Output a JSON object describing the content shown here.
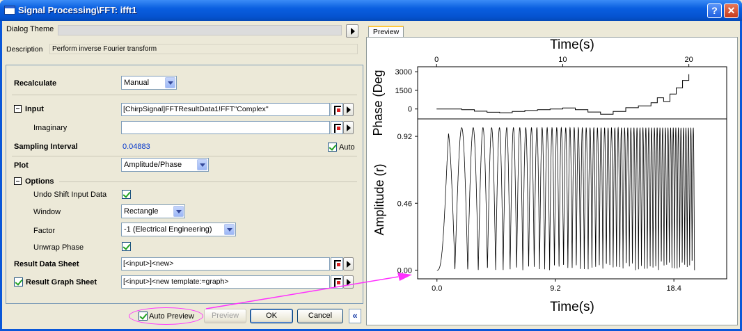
{
  "window": {
    "title": "Signal Processing\\FFT: ifft1"
  },
  "header": {
    "dialog_theme_label": "Dialog Theme",
    "dialog_theme_value": "",
    "description_label": "Description",
    "description_value": "Perform inverse Fourier transform"
  },
  "settings": {
    "recalculate": {
      "label": "Recalculate",
      "value": "Manual"
    },
    "input": {
      "label": "Input",
      "value": "[ChirpSignal]FFTResultData1!FFT''Complex''"
    },
    "imaginary": {
      "label": "Imaginary",
      "value": ""
    },
    "sampling_interval": {
      "label": "Sampling Interval",
      "value": "0.04883",
      "auto_label": "Auto",
      "auto_checked": true
    },
    "plot": {
      "label": "Plot",
      "value": "Amplitude/Phase"
    },
    "options": {
      "label": "Options",
      "undo_shift": {
        "label": "Undo Shift Input Data",
        "checked": true
      },
      "window": {
        "label": "Window",
        "value": "Rectangle"
      },
      "factor": {
        "label": "Factor",
        "value": "-1 (Electrical Engineering)"
      },
      "unwrap_phase": {
        "label": "Unwrap Phase",
        "checked": true
      }
    },
    "result_data_sheet": {
      "label": "Result Data Sheet",
      "value": "[<input>]<new>"
    },
    "result_graph_sheet": {
      "label": "Result Graph Sheet",
      "value": "[<input>]<new template:=graph>",
      "checked": true
    }
  },
  "buttons": {
    "auto_preview": "Auto Preview",
    "auto_preview_checked": true,
    "preview": "Preview",
    "ok": "OK",
    "cancel": "Cancel",
    "collapse": "«"
  },
  "preview_tab": {
    "label": "Preview"
  },
  "chart_data": [
    {
      "type": "line",
      "title": "",
      "xlabel": "Time(s)",
      "ylabel": "Phase (Deg",
      "x_axis_position": "top",
      "x_ticks": [
        "0",
        "10",
        "20"
      ],
      "y_ticks": [
        "3000",
        "1500",
        "0"
      ],
      "xlim": [
        -1.5,
        23
      ],
      "ylim": [
        -800,
        3400
      ],
      "series": [
        {
          "x": [
            0,
            1,
            2,
            3,
            4,
            5,
            6,
            7,
            8,
            9,
            10,
            11,
            12,
            13,
            14,
            15,
            16,
            17,
            17.5,
            18,
            18.5,
            19,
            19.5,
            20
          ],
          "values": [
            0,
            0,
            -60,
            -180,
            -260,
            -300,
            -200,
            -120,
            -60,
            0,
            80,
            -60,
            -250,
            -420,
            -200,
            100,
            250,
            500,
            900,
            600,
            1200,
            1700,
            2300,
            2800
          ]
        }
      ]
    },
    {
      "type": "line",
      "title": "",
      "xlabel": "Time(s)",
      "ylabel": "Amplitude (r)",
      "x_ticks": [
        "0.0",
        "9.2",
        "18.4"
      ],
      "y_ticks": [
        "0.00",
        "0.46",
        "0.92"
      ],
      "xlim": [
        -1.5,
        22.5
      ],
      "ylim": [
        -0.06,
        1.04
      ],
      "series": [
        {
          "description": "chirp amplitude oscillating between 0 and ~0.98 over t = 0 to 20 s"
        }
      ]
    }
  ],
  "colors": {
    "annotation": "#ff30ff",
    "titlebar": "#0a5fe0",
    "link": "#0033cc"
  }
}
